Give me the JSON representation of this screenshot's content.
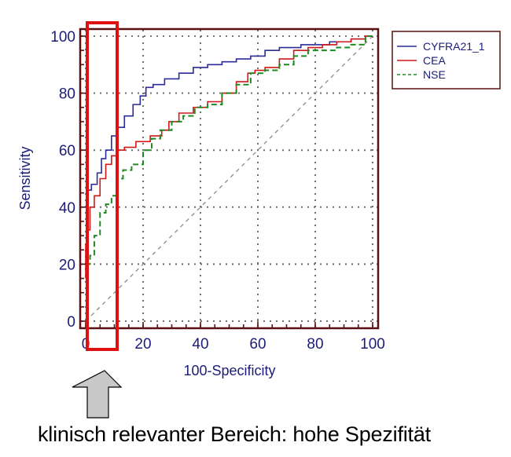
{
  "chart_data": {
    "type": "line",
    "title": "",
    "xlabel": "100-Specificity",
    "ylabel": "Sensitivity",
    "xlim": [
      0,
      100
    ],
    "ylim": [
      0,
      100
    ],
    "x_ticks": [
      0,
      20,
      40,
      60,
      80,
      100
    ],
    "y_ticks": [
      0,
      20,
      40,
      60,
      80,
      100
    ],
    "grid": true,
    "legend_position": "right-outside-top",
    "reference_line": {
      "name": "diagonal",
      "points": [
        [
          0,
          0
        ],
        [
          100,
          100
        ]
      ],
      "style": "dashed",
      "color": "#808080"
    },
    "series": [
      {
        "name": "CYFRA21_1",
        "color": "#2b2b9a",
        "style": "solid",
        "points": [
          [
            0,
            45
          ],
          [
            1,
            46
          ],
          [
            3,
            48
          ],
          [
            5,
            52
          ],
          [
            6,
            57
          ],
          [
            8,
            60
          ],
          [
            10,
            65
          ],
          [
            12,
            68
          ],
          [
            15,
            72
          ],
          [
            18,
            76
          ],
          [
            20,
            79
          ],
          [
            22,
            82
          ],
          [
            25,
            83
          ],
          [
            30,
            85
          ],
          [
            35,
            87
          ],
          [
            40,
            89
          ],
          [
            45,
            90
          ],
          [
            50,
            91
          ],
          [
            55,
            92
          ],
          [
            60,
            93
          ],
          [
            65,
            95
          ],
          [
            70,
            96
          ],
          [
            80,
            97
          ],
          [
            90,
            98
          ],
          [
            95,
            99
          ],
          [
            100,
            100
          ]
        ]
      },
      {
        "name": "CEA",
        "color": "#d01818",
        "style": "solid",
        "points": [
          [
            0,
            15
          ],
          [
            0,
            27
          ],
          [
            1,
            32
          ],
          [
            2,
            40
          ],
          [
            4,
            44
          ],
          [
            6,
            50
          ],
          [
            8,
            55
          ],
          [
            10,
            58
          ],
          [
            12,
            60
          ],
          [
            15,
            61
          ],
          [
            20,
            63
          ],
          [
            25,
            65
          ],
          [
            28,
            67
          ],
          [
            30,
            70
          ],
          [
            35,
            73
          ],
          [
            40,
            75
          ],
          [
            45,
            77
          ],
          [
            50,
            80
          ],
          [
            55,
            84
          ],
          [
            58,
            87
          ],
          [
            60,
            88
          ],
          [
            65,
            89
          ],
          [
            70,
            92
          ],
          [
            75,
            95
          ],
          [
            80,
            96
          ],
          [
            85,
            97
          ],
          [
            90,
            98
          ],
          [
            95,
            99
          ],
          [
            100,
            100
          ]
        ]
      },
      {
        "name": "NSE",
        "color": "#1f8a1f",
        "style": "dashed",
        "points": [
          [
            0,
            17
          ],
          [
            1,
            20
          ],
          [
            2,
            23
          ],
          [
            4,
            30
          ],
          [
            6,
            38
          ],
          [
            8,
            41
          ],
          [
            10,
            44
          ],
          [
            12,
            50
          ],
          [
            14,
            53
          ],
          [
            18,
            55
          ],
          [
            22,
            60
          ],
          [
            24,
            64
          ],
          [
            28,
            67
          ],
          [
            32,
            70
          ],
          [
            36,
            72
          ],
          [
            40,
            75
          ],
          [
            45,
            76
          ],
          [
            50,
            80
          ],
          [
            55,
            83
          ],
          [
            60,
            87
          ],
          [
            65,
            88
          ],
          [
            70,
            90
          ],
          [
            75,
            93
          ],
          [
            80,
            95
          ],
          [
            85,
            95
          ],
          [
            90,
            96
          ],
          [
            95,
            97
          ],
          [
            100,
            100
          ]
        ]
      }
    ],
    "annotations": [
      {
        "type": "highlight-rectangle",
        "x_range": [
          0,
          11
        ],
        "color": "#e01010"
      },
      {
        "type": "arrow",
        "direction": "up",
        "color": "#c8c8c8"
      },
      {
        "type": "caption",
        "text": "klinisch relevanter Bereich: hohe Spezifität"
      }
    ]
  },
  "labels": {
    "xlabel": "100-Specificity",
    "ylabel": "Sensitivity",
    "x_ticks": [
      "0",
      "20",
      "40",
      "60",
      "80",
      "100"
    ],
    "y_ticks": [
      "0",
      "20",
      "40",
      "60",
      "80",
      "100"
    ],
    "legend": [
      "CYFRA21_1",
      "CEA",
      "NSE"
    ],
    "caption": "klinisch relevanter Bereich: hohe Spezifität"
  }
}
